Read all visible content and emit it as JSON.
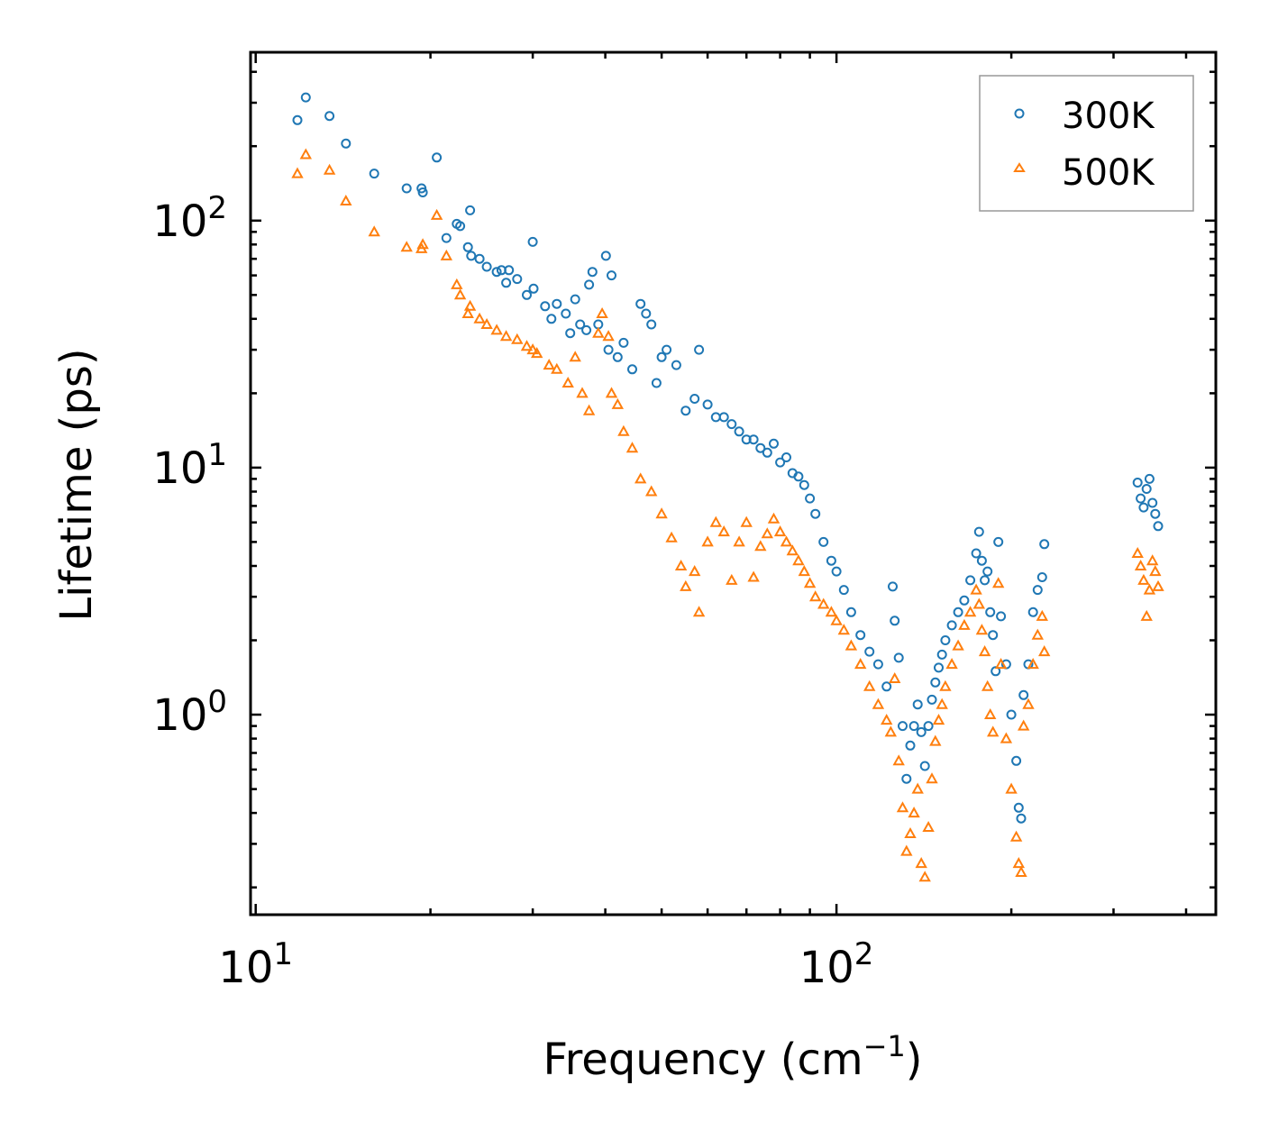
{
  "chart_data": {
    "type": "scatter",
    "title": "",
    "xlabel": "Frequency (cm",
    "xlabel_sup": "−1",
    "xlabel_close": ")",
    "ylabel": "Lifetime (ps)",
    "xscale": "log",
    "yscale": "log",
    "xlim": [
      9.8,
      450
    ],
    "ylim": [
      0.155,
      480
    ],
    "xticks": [
      {
        "value": 10,
        "base": "10",
        "exp": "1"
      },
      {
        "value": 100,
        "base": "10",
        "exp": "2"
      }
    ],
    "yticks": [
      {
        "value": 1,
        "base": "10",
        "exp": "0"
      },
      {
        "value": 10,
        "base": "10",
        "exp": "1"
      },
      {
        "value": 100,
        "base": "10",
        "exp": "2"
      }
    ],
    "legend_position": "top-right",
    "series": [
      {
        "name": "300K",
        "marker": "circle",
        "color": "#1f77b4",
        "points": [
          [
            11.8,
            255
          ],
          [
            12.2,
            315
          ],
          [
            13.4,
            265
          ],
          [
            14.3,
            205
          ],
          [
            16.0,
            155
          ],
          [
            18.2,
            135
          ],
          [
            19.3,
            135
          ],
          [
            19.4,
            130
          ],
          [
            20.5,
            180
          ],
          [
            21.3,
            85
          ],
          [
            22.2,
            97
          ],
          [
            22.5,
            95
          ],
          [
            23.4,
            110
          ],
          [
            23.2,
            78
          ],
          [
            23.5,
            72
          ],
          [
            24.3,
            70
          ],
          [
            25.0,
            65
          ],
          [
            26.0,
            62
          ],
          [
            26.5,
            63
          ],
          [
            27.3,
            63
          ],
          [
            27.0,
            56
          ],
          [
            28.2,
            58
          ],
          [
            29.3,
            50
          ],
          [
            30.1,
            53
          ],
          [
            30.0,
            82
          ],
          [
            31.5,
            45
          ],
          [
            32.3,
            40
          ],
          [
            33.0,
            46
          ],
          [
            34.2,
            42
          ],
          [
            34.8,
            35
          ],
          [
            35.5,
            48
          ],
          [
            36.2,
            38
          ],
          [
            37.1,
            36
          ],
          [
            37.5,
            55
          ],
          [
            38.0,
            62
          ],
          [
            38.9,
            38
          ],
          [
            40.1,
            72
          ],
          [
            40.5,
            30
          ],
          [
            41.0,
            60
          ],
          [
            42.0,
            28
          ],
          [
            43.0,
            32
          ],
          [
            44.5,
            25
          ],
          [
            46.0,
            46
          ],
          [
            47.0,
            42
          ],
          [
            48.0,
            38
          ],
          [
            49.0,
            22
          ],
          [
            50.0,
            28
          ],
          [
            51.0,
            30
          ],
          [
            53.0,
            26
          ],
          [
            55.0,
            17
          ],
          [
            57.0,
            19
          ],
          [
            58.0,
            30
          ],
          [
            60.0,
            18
          ],
          [
            62.0,
            16
          ],
          [
            64.0,
            16
          ],
          [
            66.0,
            15
          ],
          [
            68.0,
            14
          ],
          [
            70.0,
            13
          ],
          [
            72.0,
            13
          ],
          [
            74.0,
            12
          ],
          [
            76.0,
            11.5
          ],
          [
            78.0,
            12.5
          ],
          [
            80.0,
            10.5
          ],
          [
            82.0,
            11
          ],
          [
            84.0,
            9.5
          ],
          [
            86.0,
            9.2
          ],
          [
            88.0,
            8.5
          ],
          [
            90.0,
            7.5
          ],
          [
            92.0,
            6.5
          ],
          [
            95.0,
            5.0
          ],
          [
            98.0,
            4.2
          ],
          [
            100.0,
            3.8
          ],
          [
            103.0,
            3.2
          ],
          [
            106.0,
            2.6
          ],
          [
            110.0,
            2.1
          ],
          [
            114.0,
            1.8
          ],
          [
            118.0,
            1.6
          ],
          [
            122.0,
            1.3
          ],
          [
            125.0,
            3.3
          ],
          [
            126.0,
            2.4
          ],
          [
            128.0,
            1.7
          ],
          [
            130.0,
            0.9
          ],
          [
            132.0,
            0.55
          ],
          [
            134.0,
            0.75
          ],
          [
            136.0,
            0.9
          ],
          [
            138.0,
            1.1
          ],
          [
            140.0,
            0.85
          ],
          [
            142.0,
            0.62
          ],
          [
            144.0,
            0.9
          ],
          [
            146.0,
            1.15
          ],
          [
            148.0,
            1.35
          ],
          [
            150.0,
            1.55
          ],
          [
            152.0,
            1.75
          ],
          [
            154.0,
            2.0
          ],
          [
            158.0,
            2.3
          ],
          [
            162.0,
            2.6
          ],
          [
            166.0,
            2.9
          ],
          [
            170.0,
            3.5
          ],
          [
            174.0,
            4.5
          ],
          [
            176.0,
            5.5
          ],
          [
            178.0,
            4.2
          ],
          [
            180.0,
            3.5
          ],
          [
            182.0,
            3.8
          ],
          [
            184.0,
            2.6
          ],
          [
            186.0,
            2.1
          ],
          [
            188.0,
            1.5
          ],
          [
            190.0,
            5.0
          ],
          [
            192.0,
            2.5
          ],
          [
            196.0,
            1.6
          ],
          [
            200.0,
            1.0
          ],
          [
            204.0,
            0.65
          ],
          [
            206.0,
            0.42
          ],
          [
            208.0,
            0.38
          ],
          [
            210.0,
            1.2
          ],
          [
            214.0,
            1.6
          ],
          [
            218.0,
            2.6
          ],
          [
            222.0,
            3.2
          ],
          [
            226.0,
            3.6
          ],
          [
            228.0,
            4.9
          ],
          [
            330.0,
            8.7
          ],
          [
            334.0,
            7.5
          ],
          [
            338.0,
            6.9
          ],
          [
            342.0,
            8.2
          ],
          [
            346.0,
            9.0
          ],
          [
            350.0,
            7.2
          ],
          [
            354.0,
            6.5
          ],
          [
            358.0,
            5.8
          ]
        ]
      },
      {
        "name": "500K",
        "marker": "triangle",
        "color": "#ff7f0e",
        "points": [
          [
            11.8,
            155
          ],
          [
            12.2,
            185
          ],
          [
            13.4,
            160
          ],
          [
            14.3,
            120
          ],
          [
            16.0,
            90
          ],
          [
            18.2,
            78
          ],
          [
            19.3,
            77
          ],
          [
            19.4,
            80
          ],
          [
            20.5,
            105
          ],
          [
            21.3,
            72
          ],
          [
            22.2,
            55
          ],
          [
            22.5,
            50
          ],
          [
            23.4,
            45
          ],
          [
            23.2,
            42
          ],
          [
            24.3,
            40
          ],
          [
            25.0,
            38
          ],
          [
            26.0,
            36
          ],
          [
            27.0,
            34
          ],
          [
            28.2,
            33
          ],
          [
            29.3,
            31
          ],
          [
            30.0,
            30
          ],
          [
            30.5,
            29
          ],
          [
            32.0,
            26
          ],
          [
            33.0,
            25
          ],
          [
            34.5,
            22
          ],
          [
            35.5,
            28
          ],
          [
            36.5,
            20
          ],
          [
            37.5,
            17
          ],
          [
            38.9,
            35
          ],
          [
            39.5,
            42
          ],
          [
            40.5,
            34
          ],
          [
            41.0,
            20
          ],
          [
            42.0,
            18
          ],
          [
            43.0,
            14
          ],
          [
            44.5,
            12
          ],
          [
            46.0,
            9.0
          ],
          [
            48.0,
            8.0
          ],
          [
            50.0,
            6.5
          ],
          [
            52.0,
            5.2
          ],
          [
            54.0,
            4.0
          ],
          [
            55.0,
            3.3
          ],
          [
            57.0,
            3.8
          ],
          [
            58.0,
            2.6
          ],
          [
            60.0,
            5.0
          ],
          [
            62.0,
            6.0
          ],
          [
            64.0,
            5.5
          ],
          [
            66.0,
            3.5
          ],
          [
            68.0,
            5.0
          ],
          [
            70.0,
            6.0
          ],
          [
            72.0,
            3.6
          ],
          [
            74.0,
            4.8
          ],
          [
            76.0,
            5.4
          ],
          [
            78.0,
            6.2
          ],
          [
            80.0,
            5.5
          ],
          [
            82.0,
            5.0
          ],
          [
            84.0,
            4.6
          ],
          [
            86.0,
            4.2
          ],
          [
            88.0,
            3.8
          ],
          [
            90.0,
            3.4
          ],
          [
            92.0,
            3.0
          ],
          [
            95.0,
            2.8
          ],
          [
            98.0,
            2.6
          ],
          [
            100.0,
            2.4
          ],
          [
            103.0,
            2.2
          ],
          [
            106.0,
            1.9
          ],
          [
            110.0,
            1.6
          ],
          [
            114.0,
            1.3
          ],
          [
            118.0,
            1.1
          ],
          [
            122.0,
            0.95
          ],
          [
            124.0,
            0.85
          ],
          [
            126.0,
            1.4
          ],
          [
            128.0,
            0.65
          ],
          [
            130.0,
            0.42
          ],
          [
            132.0,
            0.28
          ],
          [
            134.0,
            0.33
          ],
          [
            136.0,
            0.4
          ],
          [
            138.0,
            0.5
          ],
          [
            140.0,
            0.25
          ],
          [
            142.0,
            0.22
          ],
          [
            144.0,
            0.35
          ],
          [
            146.0,
            0.55
          ],
          [
            148.0,
            0.78
          ],
          [
            150.0,
            0.95
          ],
          [
            152.0,
            1.1
          ],
          [
            154.0,
            1.3
          ],
          [
            158.0,
            1.6
          ],
          [
            162.0,
            1.9
          ],
          [
            166.0,
            2.3
          ],
          [
            170.0,
            2.6
          ],
          [
            174.0,
            3.2
          ],
          [
            176.0,
            2.8
          ],
          [
            178.0,
            2.2
          ],
          [
            180.0,
            1.8
          ],
          [
            182.0,
            1.3
          ],
          [
            184.0,
            1.0
          ],
          [
            186.0,
            0.85
          ],
          [
            190.0,
            3.4
          ],
          [
            192.0,
            1.6
          ],
          [
            196.0,
            0.8
          ],
          [
            200.0,
            0.5
          ],
          [
            204.0,
            0.32
          ],
          [
            206.0,
            0.25
          ],
          [
            208.0,
            0.23
          ],
          [
            210.0,
            0.9
          ],
          [
            214.0,
            1.1
          ],
          [
            218.0,
            1.6
          ],
          [
            222.0,
            2.1
          ],
          [
            226.0,
            2.5
          ],
          [
            228.0,
            1.8
          ],
          [
            330.0,
            4.5
          ],
          [
            334.0,
            4.0
          ],
          [
            338.0,
            3.5
          ],
          [
            342.0,
            2.5
          ],
          [
            346.0,
            3.2
          ],
          [
            350.0,
            4.2
          ],
          [
            354.0,
            3.8
          ],
          [
            358.0,
            3.3
          ]
        ]
      }
    ]
  }
}
